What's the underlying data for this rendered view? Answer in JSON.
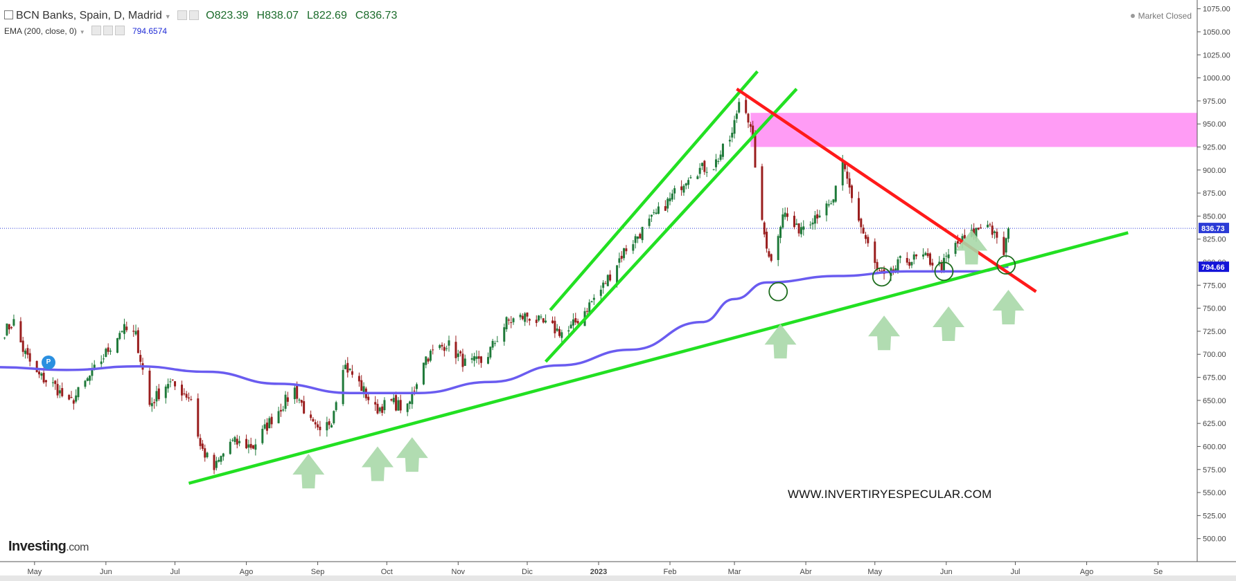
{
  "header": {
    "symbol": "BCN Banks, Spain, D, Madrid",
    "open": "O823.39",
    "high": "H838.07",
    "low": "L822.69",
    "close": "C836.73",
    "indicator": "EMA (200, close, 0)",
    "indicator_value": "794.6574",
    "status": "Market Closed"
  },
  "branding": {
    "logo": "Investing",
    "logo_suffix": ".com",
    "watermark": "WWW.INVERTIRYESPECULAR.COM",
    "badge": "P"
  },
  "colors": {
    "up": "#1f7a3a",
    "down": "#9a1e1e",
    "ema": "#6a5cf0",
    "trend_green": "#22e022",
    "trend_red": "#ff1a1a",
    "resistance_zone": "#ff9cf5",
    "arrow": "#a8d8a8"
  },
  "chart_data": {
    "type": "candlestick",
    "yaxis": {
      "min": 475,
      "max": 1080,
      "ticks": [
        500,
        525,
        550,
        575,
        600,
        625,
        650,
        675,
        700,
        725,
        750,
        775,
        800,
        825,
        850,
        875,
        900,
        925,
        950,
        975,
        1000,
        1025,
        1050,
        1075
      ],
      "tick_labels": [
        "500.00",
        "525.00",
        "550.00",
        "575.00",
        "600.00",
        "625.00",
        "650.00",
        "675.00",
        "700.00",
        "725.00",
        "750.00",
        "775.00",
        "800.00",
        "825.00",
        "850.00",
        "875.00",
        "900.00",
        "925.00",
        "950.00",
        "975.00",
        "1000.00",
        "1025.00",
        "1050.00",
        "1075.00"
      ]
    },
    "xaxis": {
      "labels": [
        {
          "label": "May",
          "date": "2022-05-01"
        },
        {
          "label": "Jun",
          "date": "2022-06-01"
        },
        {
          "label": "Jul",
          "date": "2022-07-01"
        },
        {
          "label": "Ago",
          "date": "2022-08-01"
        },
        {
          "label": "Sep",
          "date": "2022-09-01"
        },
        {
          "label": "Oct",
          "date": "2022-10-01"
        },
        {
          "label": "Nov",
          "date": "2022-11-01"
        },
        {
          "label": "Dic",
          "date": "2022-12-01"
        },
        {
          "label": "2023",
          "date": "2023-01-01"
        },
        {
          "label": "Feb",
          "date": "2023-02-01"
        },
        {
          "label": "Mar",
          "date": "2023-03-01"
        },
        {
          "label": "Abr",
          "date": "2023-04-01"
        },
        {
          "label": "May",
          "date": "2023-05-01"
        },
        {
          "label": "Jun",
          "date": "2023-06-01"
        },
        {
          "label": "Jul",
          "date": "2023-07-01"
        },
        {
          "label": "Ago",
          "date": "2023-08-01"
        },
        {
          "label": "Se",
          "date": "2023-09-01"
        }
      ],
      "start": "2022-04-16",
      "end": "2023-09-18"
    },
    "last_price": 836.73,
    "last_price_label": "836.73",
    "ema_last": 794.66,
    "ema_last_label": "794.66",
    "price_path": [
      [
        "2022-04-18",
        725
      ],
      [
        "2022-04-22",
        735
      ],
      [
        "2022-04-26",
        705
      ],
      [
        "2022-05-02",
        678
      ],
      [
        "2022-05-10",
        665
      ],
      [
        "2022-05-16",
        645
      ],
      [
        "2022-05-24",
        672
      ],
      [
        "2022-06-02",
        705
      ],
      [
        "2022-06-08",
        728
      ],
      [
        "2022-06-14",
        720
      ],
      [
        "2022-06-20",
        645
      ],
      [
        "2022-06-28",
        670
      ],
      [
        "2022-07-04",
        660
      ],
      [
        "2022-07-08",
        652
      ],
      [
        "2022-07-12",
        600
      ],
      [
        "2022-07-18",
        575
      ],
      [
        "2022-07-25",
        605
      ],
      [
        "2022-08-04",
        600
      ],
      [
        "2022-08-12",
        630
      ],
      [
        "2022-08-22",
        662
      ],
      [
        "2022-08-29",
        625
      ],
      [
        "2022-09-02",
        612
      ],
      [
        "2022-09-07",
        630
      ],
      [
        "2022-09-12",
        690
      ],
      [
        "2022-09-18",
        672
      ],
      [
        "2022-09-26",
        640
      ],
      [
        "2022-10-03",
        648
      ],
      [
        "2022-10-10",
        640
      ],
      [
        "2022-10-17",
        695
      ],
      [
        "2022-10-27",
        712
      ],
      [
        "2022-11-04",
        690
      ],
      [
        "2022-11-12",
        692
      ],
      [
        "2022-11-22",
        735
      ],
      [
        "2022-12-01",
        742
      ],
      [
        "2022-12-10",
        730
      ],
      [
        "2022-12-18",
        722
      ],
      [
        "2023-01-02",
        770
      ],
      [
        "2023-01-12",
        812
      ],
      [
        "2023-01-22",
        840
      ],
      [
        "2023-02-01",
        868
      ],
      [
        "2023-02-10",
        898
      ],
      [
        "2023-02-20",
        905
      ],
      [
        "2023-02-28",
        938
      ],
      [
        "2023-03-03",
        975
      ],
      [
        "2023-03-06",
        968
      ],
      [
        "2023-03-09",
        930
      ],
      [
        "2023-03-13",
        840
      ],
      [
        "2023-03-17",
        800
      ],
      [
        "2023-03-22",
        855
      ],
      [
        "2023-03-28",
        835
      ],
      [
        "2023-04-05",
        852
      ],
      [
        "2023-04-12",
        860
      ],
      [
        "2023-04-17",
        905
      ],
      [
        "2023-04-20",
        880
      ],
      [
        "2023-04-25",
        838
      ],
      [
        "2023-05-02",
        790
      ],
      [
        "2023-05-06",
        780
      ],
      [
        "2023-05-12",
        800
      ],
      [
        "2023-05-22",
        805
      ],
      [
        "2023-05-30",
        795
      ],
      [
        "2023-06-05",
        818
      ],
      [
        "2023-06-12",
        830
      ],
      [
        "2023-06-19",
        845
      ],
      [
        "2023-06-23",
        822
      ],
      [
        "2023-06-26",
        810
      ],
      [
        "2023-06-28",
        837
      ]
    ],
    "ema_path": [
      [
        "2022-04-15",
        686
      ],
      [
        "2022-05-15",
        683
      ],
      [
        "2022-06-15",
        687
      ],
      [
        "2022-07-15",
        681
      ],
      [
        "2022-08-15",
        668
      ],
      [
        "2022-09-15",
        658
      ],
      [
        "2022-10-15",
        658
      ],
      [
        "2022-11-15",
        670
      ],
      [
        "2022-12-15",
        688
      ],
      [
        "2023-01-15",
        705
      ],
      [
        "2023-02-15",
        735
      ],
      [
        "2023-03-01",
        760
      ],
      [
        "2023-03-15",
        778
      ],
      [
        "2023-04-15",
        785
      ],
      [
        "2023-05-15",
        790
      ],
      [
        "2023-06-15",
        790
      ],
      [
        "2023-06-28",
        795
      ]
    ],
    "resistance_zone": {
      "from": "2023-03-08",
      "to": "2023-09-18",
      "low": 925,
      "high": 962
    },
    "trend_lines": [
      {
        "color": "green",
        "points": [
          [
            "2022-07-07",
            560
          ],
          [
            "2023-08-19",
            832
          ]
        ]
      },
      {
        "color": "green",
        "points": [
          [
            "2022-12-11",
            748
          ],
          [
            "2023-03-11",
            1007
          ]
        ]
      },
      {
        "color": "green",
        "points": [
          [
            "2022-12-09",
            692
          ],
          [
            "2023-03-28",
            988
          ]
        ]
      },
      {
        "color": "red",
        "points": [
          [
            "2023-03-02",
            988
          ],
          [
            "2023-07-10",
            768
          ]
        ]
      }
    ],
    "circles": [
      [
        "2023-03-20",
        768
      ],
      [
        "2023-05-04",
        784
      ],
      [
        "2023-05-31",
        790
      ],
      [
        "2023-06-27",
        797
      ]
    ],
    "arrows": [
      [
        "2022-08-28",
        592
      ],
      [
        "2022-09-27",
        600
      ],
      [
        "2022-10-12",
        610
      ],
      [
        "2023-03-21",
        733
      ],
      [
        "2023-05-05",
        742
      ],
      [
        "2023-06-02",
        752
      ],
      [
        "2023-06-28",
        770
      ],
      [
        "2023-06-12",
        835
      ]
    ]
  }
}
